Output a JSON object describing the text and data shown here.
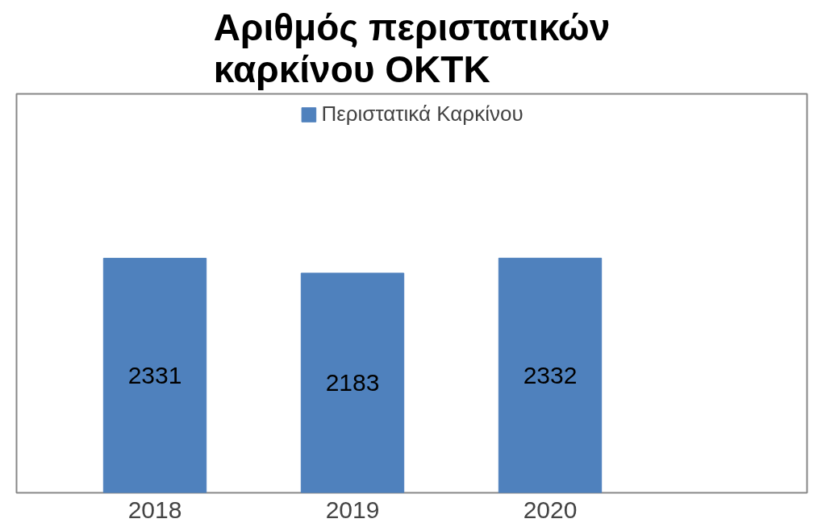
{
  "chart_data": {
    "type": "bar",
    "title": "Αριθμός περιστατικών καρκίνου ΟΚΤΚ",
    "categories": [
      "2018",
      "2019",
      "2020"
    ],
    "series": [
      {
        "name": "Περιστατικά Καρκίνου",
        "color": "#4f81bd",
        "values": [
          2331,
          2183,
          2332
        ]
      }
    ],
    "data_labels": true,
    "legend": "top",
    "grid": false
  }
}
